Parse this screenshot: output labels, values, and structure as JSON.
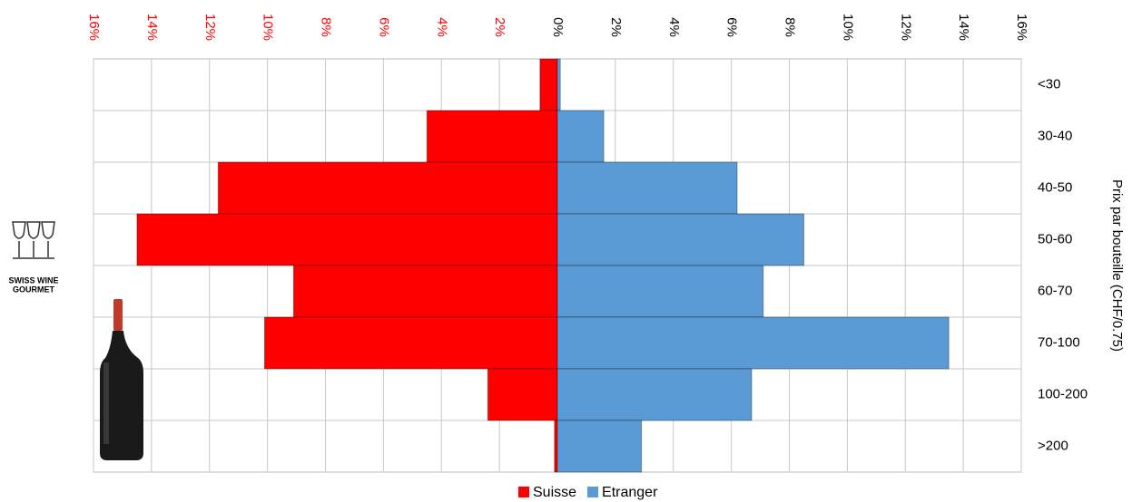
{
  "chart_data": {
    "type": "bar",
    "orientation": "horizontal",
    "logo_text": [
      "SWISS WINE",
      "GOURMET"
    ],
    "y_label": "Prix par bouteille (CHF/0.75)",
    "categories": [
      "<30",
      "30-40",
      "40-50",
      "50-60",
      "60-70",
      "70-100",
      "100-200",
      ">200"
    ],
    "series": [
      {
        "name": "Suisse",
        "color": "#ff0000",
        "side": "left",
        "values": [
          0.6,
          4.5,
          11.7,
          14.5,
          9.1,
          10.1,
          2.4,
          0.1
        ]
      },
      {
        "name": "Etranger",
        "color": "#5b9bd5",
        "side": "right",
        "values": [
          0.1,
          1.6,
          6.2,
          8.5,
          7.1,
          13.5,
          6.7,
          2.9
        ]
      }
    ],
    "xlim": [
      0,
      16
    ],
    "left_xticks": [
      {
        "value": 2,
        "label": "2%"
      },
      {
        "value": 4,
        "label": "4%"
      },
      {
        "value": 6,
        "label": "6%"
      },
      {
        "value": 8,
        "label": "8%"
      },
      {
        "value": 10,
        "label": "10%"
      },
      {
        "value": 12,
        "label": "12%"
      },
      {
        "value": 14,
        "label": "14%"
      },
      {
        "value": 16,
        "label": "16%"
      }
    ],
    "right_xticks": [
      {
        "value": 0,
        "label": "0%"
      },
      {
        "value": 2,
        "label": "2%"
      },
      {
        "value": 4,
        "label": "4%"
      },
      {
        "value": 6,
        "label": "6%"
      },
      {
        "value": 8,
        "label": "8%"
      },
      {
        "value": 10,
        "label": "10%"
      },
      {
        "value": 12,
        "label": "12%"
      },
      {
        "value": 14,
        "label": "14%"
      },
      {
        "value": 16,
        "label": "16%"
      }
    ],
    "left_tick_color": "#ff0000",
    "right_tick_color": "#000000",
    "grid": true
  }
}
